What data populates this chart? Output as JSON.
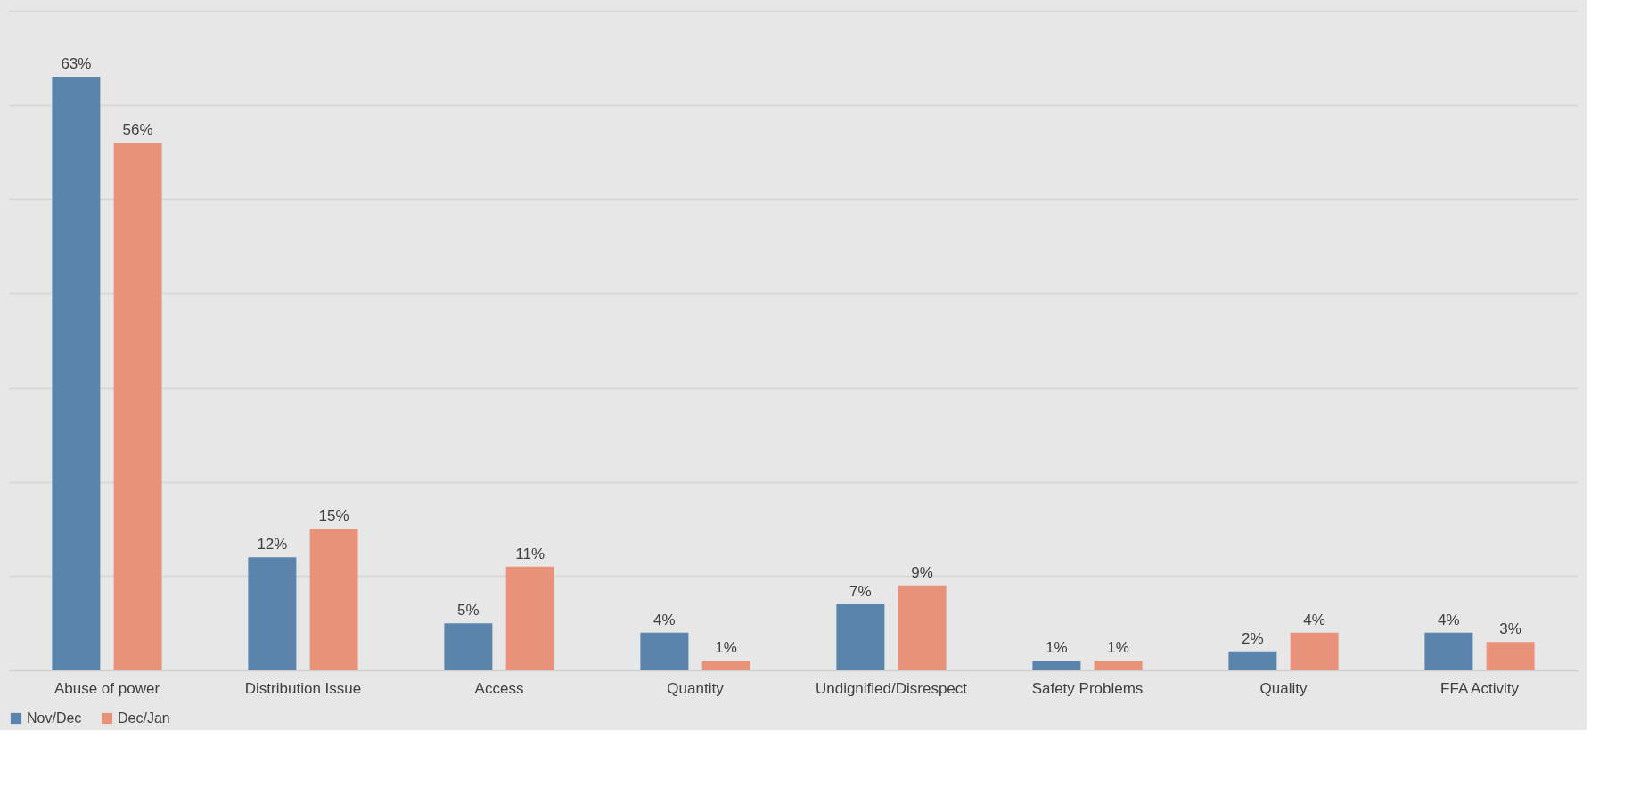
{
  "chart_data": {
    "type": "bar",
    "categories": [
      "Abuse of power",
      "Distribution Issue",
      "Access",
      "Quantity",
      "Undignified/Disrespect",
      "Safety Problems",
      "Quality",
      "FFA Activity"
    ],
    "series": [
      {
        "name": "Nov/Dec",
        "color": "#5b84ad",
        "values": [
          63,
          12,
          5,
          4,
          7,
          1,
          2,
          4
        ],
        "value_labels": [
          "63%",
          "12%",
          "5%",
          "4%",
          "7%",
          "1%",
          "2%",
          "4%"
        ]
      },
      {
        "name": "Dec/Jan",
        "color": "#e8927a",
        "values": [
          56,
          15,
          11,
          1,
          9,
          1,
          4,
          3
        ],
        "value_labels": [
          "56%",
          "15%",
          "11%",
          "1%",
          "9%",
          "1%",
          "4%",
          "3%"
        ]
      }
    ],
    "ylim": [
      0,
      70
    ],
    "yticks": [
      {
        "value": 0,
        "label": null
      },
      {
        "value": 10,
        "label": null
      },
      {
        "value": 20,
        "label": null
      },
      {
        "value": 30,
        "label": null
      },
      {
        "value": 40,
        "label": null
      },
      {
        "value": 50,
        "label": null
      },
      {
        "value": 60,
        "label": null
      },
      {
        "value": 70,
        "label": null
      }
    ],
    "grid": "y",
    "tick_labels": "x",
    "legend": "bottom"
  }
}
